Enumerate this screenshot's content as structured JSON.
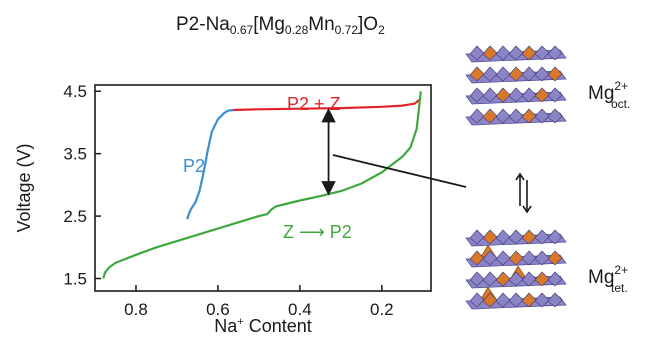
{
  "chart_data": {
    "type": "line",
    "title": {
      "prefix": "P2-Na",
      "sub1": "0.67",
      "mid1": "[Mg",
      "sub2": "0.28",
      "mid2": "Mn",
      "sub3": "0.72",
      "mid3": "]O",
      "sub4": "2"
    },
    "xlabel": {
      "main": "Na",
      "sup": "+",
      "rest": " Content"
    },
    "ylabel": "Voltage (V)",
    "xlim": [
      0.9,
      0.08
    ],
    "ylim": [
      1.3,
      4.6
    ],
    "xticks": [
      "0.8",
      "0.6",
      "0.4",
      "0.2"
    ],
    "xtick_values": [
      0.8,
      0.6,
      0.4,
      0.2
    ],
    "yticks": [
      "1.5",
      "2.5",
      "3.5",
      "4.5"
    ],
    "ytick_values": [
      1.5,
      2.5,
      3.5,
      4.5
    ],
    "series": [
      {
        "name": "P2",
        "color": "#3b8ed0",
        "points": [
          [
            0.675,
            2.45
          ],
          [
            0.67,
            2.55
          ],
          [
            0.665,
            2.62
          ],
          [
            0.655,
            2.72
          ],
          [
            0.645,
            2.9
          ],
          [
            0.635,
            3.2
          ],
          [
            0.625,
            3.55
          ],
          [
            0.615,
            3.85
          ],
          [
            0.6,
            4.05
          ],
          [
            0.585,
            4.15
          ],
          [
            0.575,
            4.19
          ],
          [
            0.562,
            4.2
          ]
        ]
      },
      {
        "name": "P2 + Z",
        "color": "#e3232c",
        "points": [
          [
            0.562,
            4.2
          ],
          [
            0.5,
            4.21
          ],
          [
            0.4,
            4.22
          ],
          [
            0.3,
            4.23
          ],
          [
            0.2,
            4.25
          ],
          [
            0.15,
            4.27
          ],
          [
            0.12,
            4.3
          ],
          [
            0.105,
            4.38
          ]
        ]
      },
      {
        "name": "Z ⟶ P2",
        "color": "#3ea83e",
        "points": [
          [
            0.88,
            1.5
          ],
          [
            0.875,
            1.6
          ],
          [
            0.865,
            1.68
          ],
          [
            0.85,
            1.75
          ],
          [
            0.8,
            1.88
          ],
          [
            0.75,
            2.0
          ],
          [
            0.7,
            2.1
          ],
          [
            0.65,
            2.2
          ],
          [
            0.6,
            2.3
          ],
          [
            0.55,
            2.4
          ],
          [
            0.5,
            2.5
          ],
          [
            0.48,
            2.53
          ],
          [
            0.47,
            2.6
          ],
          [
            0.46,
            2.65
          ],
          [
            0.45,
            2.67
          ],
          [
            0.4,
            2.75
          ],
          [
            0.35,
            2.82
          ],
          [
            0.3,
            2.9
          ],
          [
            0.25,
            3.02
          ],
          [
            0.2,
            3.2
          ],
          [
            0.15,
            3.45
          ],
          [
            0.13,
            3.6
          ],
          [
            0.115,
            3.9
          ],
          [
            0.108,
            4.3
          ],
          [
            0.105,
            4.5
          ]
        ]
      }
    ],
    "annotations": {
      "p2": "P2",
      "p2z": "P2 + Z",
      "zp2": "Z ⟶ P2",
      "double_arrow_x": 0.33,
      "double_arrow_y": [
        2.88,
        4.18
      ]
    }
  },
  "structures": {
    "colors": {
      "mn_octahedra": "#8b84c7",
      "mg_polyhedra": "#d9782b"
    },
    "top_label": {
      "main": "Mg",
      "sup": "2+",
      "sub": "oct."
    },
    "bottom_label": {
      "main": "Mg",
      "sup": "2+",
      "sub": "tet."
    }
  }
}
